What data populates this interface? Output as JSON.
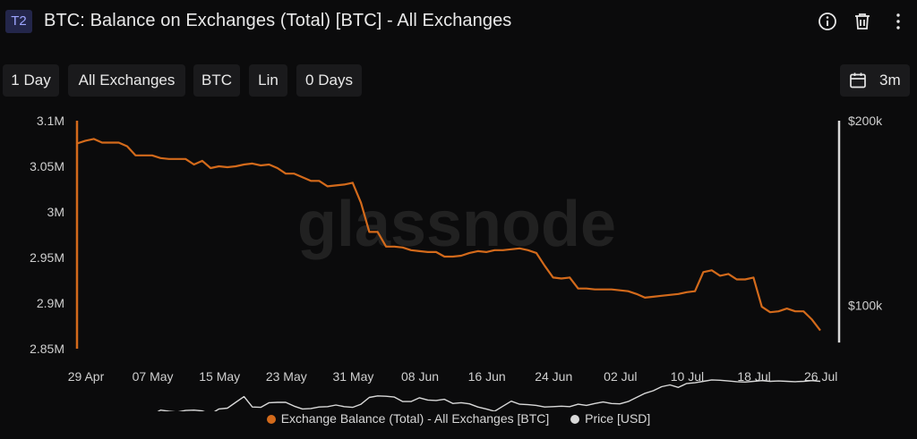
{
  "header": {
    "badge": "T2",
    "title": "BTC: Balance on Exchanges (Total) [BTC] - All Exchanges",
    "icons": [
      "info-icon",
      "trash-icon",
      "more-vertical-icon"
    ]
  },
  "toolbar": {
    "resolution": "1 Day",
    "exchange": "All Exchanges",
    "asset": "BTC",
    "scale": "Lin",
    "moving_average": "0 Days",
    "range": "3m",
    "range_icon": "calendar-icon"
  },
  "watermark": "glassnode",
  "colors": {
    "balance": "#d36a1b",
    "price": "#d9d9d9",
    "background": "#0b0b0c",
    "axis_text": "#cfcfcf"
  },
  "chart_data": {
    "type": "line",
    "x_start": "2024-04-29",
    "x_ticks": [
      "29 Apr",
      "07 May",
      "15 May",
      "23 May",
      "31 May",
      "08 Jun",
      "16 Jun",
      "24 Jun",
      "02 Jul",
      "10 Jul",
      "18 Jul",
      "26 Jul"
    ],
    "y_left": {
      "ticks": [
        "3.1M",
        "3.05M",
        "3M",
        "2.95M",
        "2.9M",
        "2.85M"
      ],
      "range": [
        2850000,
        3100000
      ]
    },
    "y_right": {
      "ticks": [
        "$200k",
        "$100k"
      ],
      "scale": "log",
      "range": [
        85000,
        200000
      ]
    },
    "grid": false,
    "legend_position": "bottom",
    "series": [
      {
        "name": "Exchange Balance (Total) - All Exchanges [BTC]",
        "axis": "left",
        "values": [
          3075000,
          3078000,
          3080000,
          3076000,
          3076000,
          3076000,
          3072000,
          3062000,
          3062000,
          3062000,
          3059000,
          3058000,
          3058000,
          3058000,
          3052000,
          3056000,
          3048000,
          3050000,
          3049000,
          3050000,
          3052000,
          3053000,
          3051000,
          3052000,
          3048000,
          3042000,
          3042000,
          3038000,
          3034000,
          3034000,
          3028000,
          3029000,
          3030000,
          3032000,
          3010000,
          2978000,
          2978000,
          2962000,
          2962000,
          2961000,
          2958000,
          2957000,
          2956000,
          2956000,
          2951000,
          2951000,
          2952000,
          2955000,
          2957000,
          2956000,
          2958000,
          2958000,
          2959000,
          2960000,
          2958000,
          2955000,
          2941000,
          2928000,
          2927000,
          2928000,
          2916000,
          2916000,
          2915000,
          2915000,
          2915000,
          2914000,
          2913000,
          2910000,
          2906000,
          2907000,
          2908000,
          2909000,
          2910000,
          2912000,
          2913000,
          2934000,
          2936000,
          2930000,
          2932000,
          2926000,
          2926000,
          2928000,
          2896000,
          2890000,
          2891000,
          2894000,
          2891000,
          2891000,
          2882000,
          2870000
        ]
      },
      {
        "name": "Price [USD]",
        "axis": "right",
        "values": [
          63000,
          63200,
          64000,
          63800,
          63100,
          63200,
          64000,
          64000,
          66000,
          66300,
          67500,
          67200,
          67000,
          67400,
          67500,
          67300,
          66500,
          67800,
          68000,
          69500,
          71000,
          68300,
          68200,
          69400,
          69500,
          69500,
          68500,
          67800,
          67900,
          68300,
          68400,
          68800,
          68400,
          68200,
          69000,
          70800,
          71200,
          71100,
          70900,
          69700,
          69700,
          70700,
          70100,
          70000,
          70300,
          69200,
          69400,
          69100,
          68300,
          67800,
          67200,
          68500,
          69800,
          69000,
          68900,
          68700,
          68300,
          68400,
          68500,
          68400,
          69000,
          68700,
          69200,
          69600,
          69200,
          69100,
          69700,
          70800,
          71900,
          72600,
          73700,
          74200,
          73500,
          74600,
          74800,
          75200,
          75600,
          75500,
          75300,
          75100,
          75000,
          75200,
          75400,
          75200,
          75300,
          75200,
          75100,
          75200,
          75400,
          75200
        ]
      }
    ]
  }
}
